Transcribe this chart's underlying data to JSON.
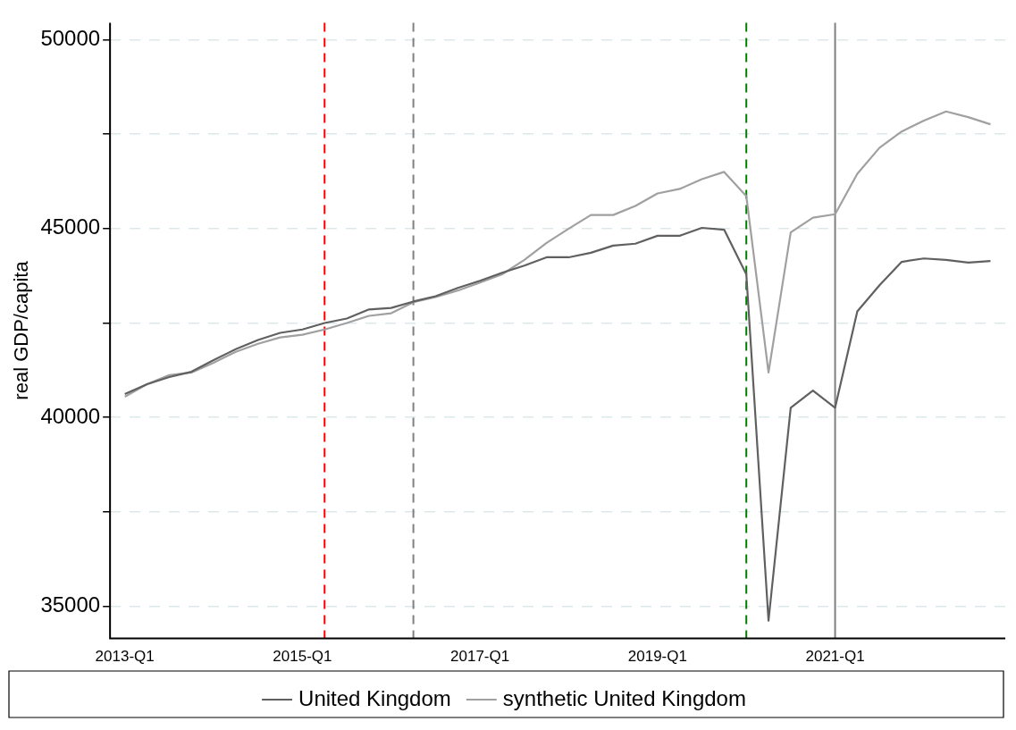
{
  "chart_data": {
    "type": "line",
    "ylabel": "real GDP/capita",
    "x": [
      "2013-01",
      "2013-04",
      "2013-07",
      "2013-10",
      "2014-01",
      "2014-04",
      "2014-07",
      "2014-10",
      "2015-01",
      "2015-04",
      "2015-07",
      "2015-10",
      "2016-01",
      "2016-04",
      "2016-07",
      "2016-10",
      "2017-01",
      "2017-04",
      "2017-07",
      "2017-10",
      "2018-01",
      "2018-04",
      "2018-07",
      "2018-10",
      "2019-01",
      "2019-04",
      "2019-07",
      "2019-10",
      "2020-01",
      "2020-04",
      "2020-07",
      "2020-10",
      "2021-01",
      "2021-04",
      "2021-07",
      "2021-10",
      "2022-01",
      "2022-04",
      "2022-07",
      "2022-10"
    ],
    "series": [
      {
        "name": "United Kingdom",
        "color": "#606060",
        "values": [
          40620,
          40880,
          41070,
          41210,
          41520,
          41810,
          42050,
          42240,
          42330,
          42500,
          42620,
          42860,
          42900,
          43070,
          43210,
          43430,
          43620,
          43830,
          44020,
          44240,
          44240,
          44360,
          44550,
          44600,
          44810,
          44810,
          45020,
          44970,
          43790,
          34620,
          40260,
          40710,
          40260,
          42810,
          43500,
          44120,
          44210,
          44170,
          44100,
          44140
        ]
      },
      {
        "name": "synthetic United Kingdom",
        "color": "#a0a0a0",
        "values": [
          40550,
          40880,
          41120,
          41190,
          41450,
          41740,
          41950,
          42120,
          42190,
          42330,
          42500,
          42690,
          42760,
          43050,
          43190,
          43360,
          43570,
          43790,
          44170,
          44620,
          45000,
          45360,
          45360,
          45600,
          45930,
          46050,
          46310,
          46500,
          45860,
          41190,
          44900,
          45290,
          45380,
          46450,
          47140,
          47570,
          47860,
          48100,
          47950,
          47760
        ]
      }
    ],
    "xlim": [
      "2012-11",
      "2022-12"
    ],
    "xticks": [
      {
        "value": "2013-01",
        "label": "2013-Q1"
      },
      {
        "value": "2015-01",
        "label": "2015-Q1"
      },
      {
        "value": "2017-01",
        "label": "2017-Q1"
      },
      {
        "value": "2019-01",
        "label": "2019-Q1"
      },
      {
        "value": "2021-01",
        "label": "2021-Q1"
      }
    ],
    "ylim": [
      34150,
      50450
    ],
    "yticks": [
      35000,
      {
        "value": 37500,
        "label": null
      },
      40000,
      {
        "value": 42500,
        "label": null
      },
      45000,
      {
        "value": 47500,
        "label": null
      },
      50000
    ],
    "grid": "y",
    "legend": "bottom",
    "marker": "none",
    "line_style": "solid",
    "ref_lines": [
      {
        "axis": "x",
        "value": "2015-04",
        "color": "#ff0000",
        "line_style": "dashed"
      },
      {
        "axis": "x",
        "value": "2016-04",
        "color": "#808080",
        "line_style": "dashed"
      },
      {
        "axis": "x",
        "value": "2020-01",
        "color": "#008000",
        "line_style": "dashed"
      },
      {
        "axis": "x",
        "value": "2021-01",
        "color": "#808080",
        "line_style": "solid"
      }
    ]
  }
}
